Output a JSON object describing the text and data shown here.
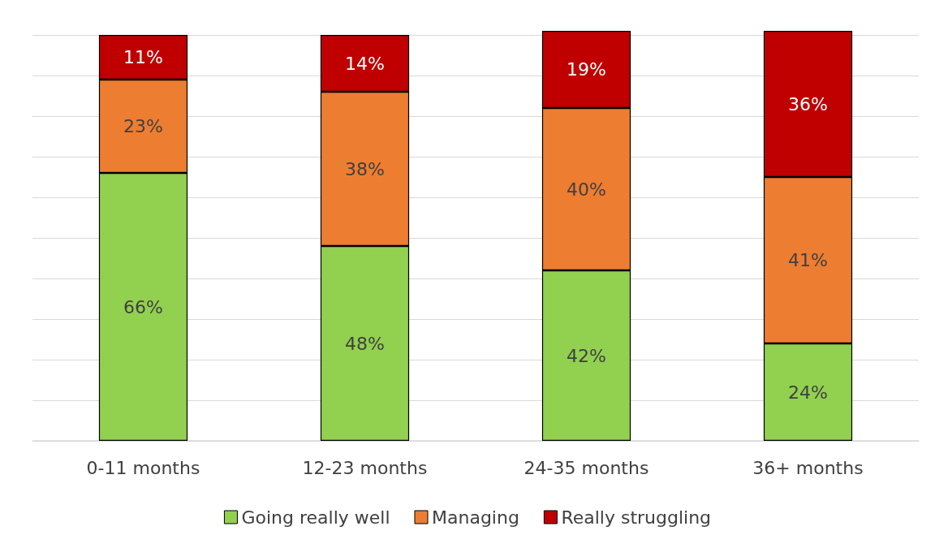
{
  "chart_data": {
    "type": "bar",
    "stacked": true,
    "categories": [
      "0-11 months",
      "12-23 months",
      "24-35 months",
      "36+ months"
    ],
    "series": [
      {
        "name": "Going really well",
        "color": "#92d050",
        "values": [
          66,
          48,
          42,
          24
        ],
        "value_labels": [
          "66%",
          "48%",
          "42%",
          "24%"
        ]
      },
      {
        "name": "Managing",
        "color": "#ed7d31",
        "values": [
          23,
          38,
          40,
          41
        ],
        "value_labels": [
          "23%",
          "38%",
          "40%",
          "41%"
        ]
      },
      {
        "name": "Really struggling",
        "color": "#c00000",
        "values": [
          11,
          14,
          19,
          36
        ],
        "value_labels": [
          "11%",
          "14%",
          "19%",
          "36%"
        ]
      }
    ],
    "ylim": [
      0,
      101
    ],
    "yticks": [
      {
        "value": 0,
        "label": null
      },
      {
        "value": 10,
        "label": null
      },
      {
        "value": 20,
        "label": null
      },
      {
        "value": 30,
        "label": null
      },
      {
        "value": 40,
        "label": null
      },
      {
        "value": 50,
        "label": null
      },
      {
        "value": 60,
        "label": null
      },
      {
        "value": 70,
        "label": null
      },
      {
        "value": 80,
        "label": null
      },
      {
        "value": 90,
        "label": null
      },
      {
        "value": 100,
        "label": null
      }
    ],
    "tick_labels": "x",
    "grid": "y",
    "legend": "bottom"
  }
}
